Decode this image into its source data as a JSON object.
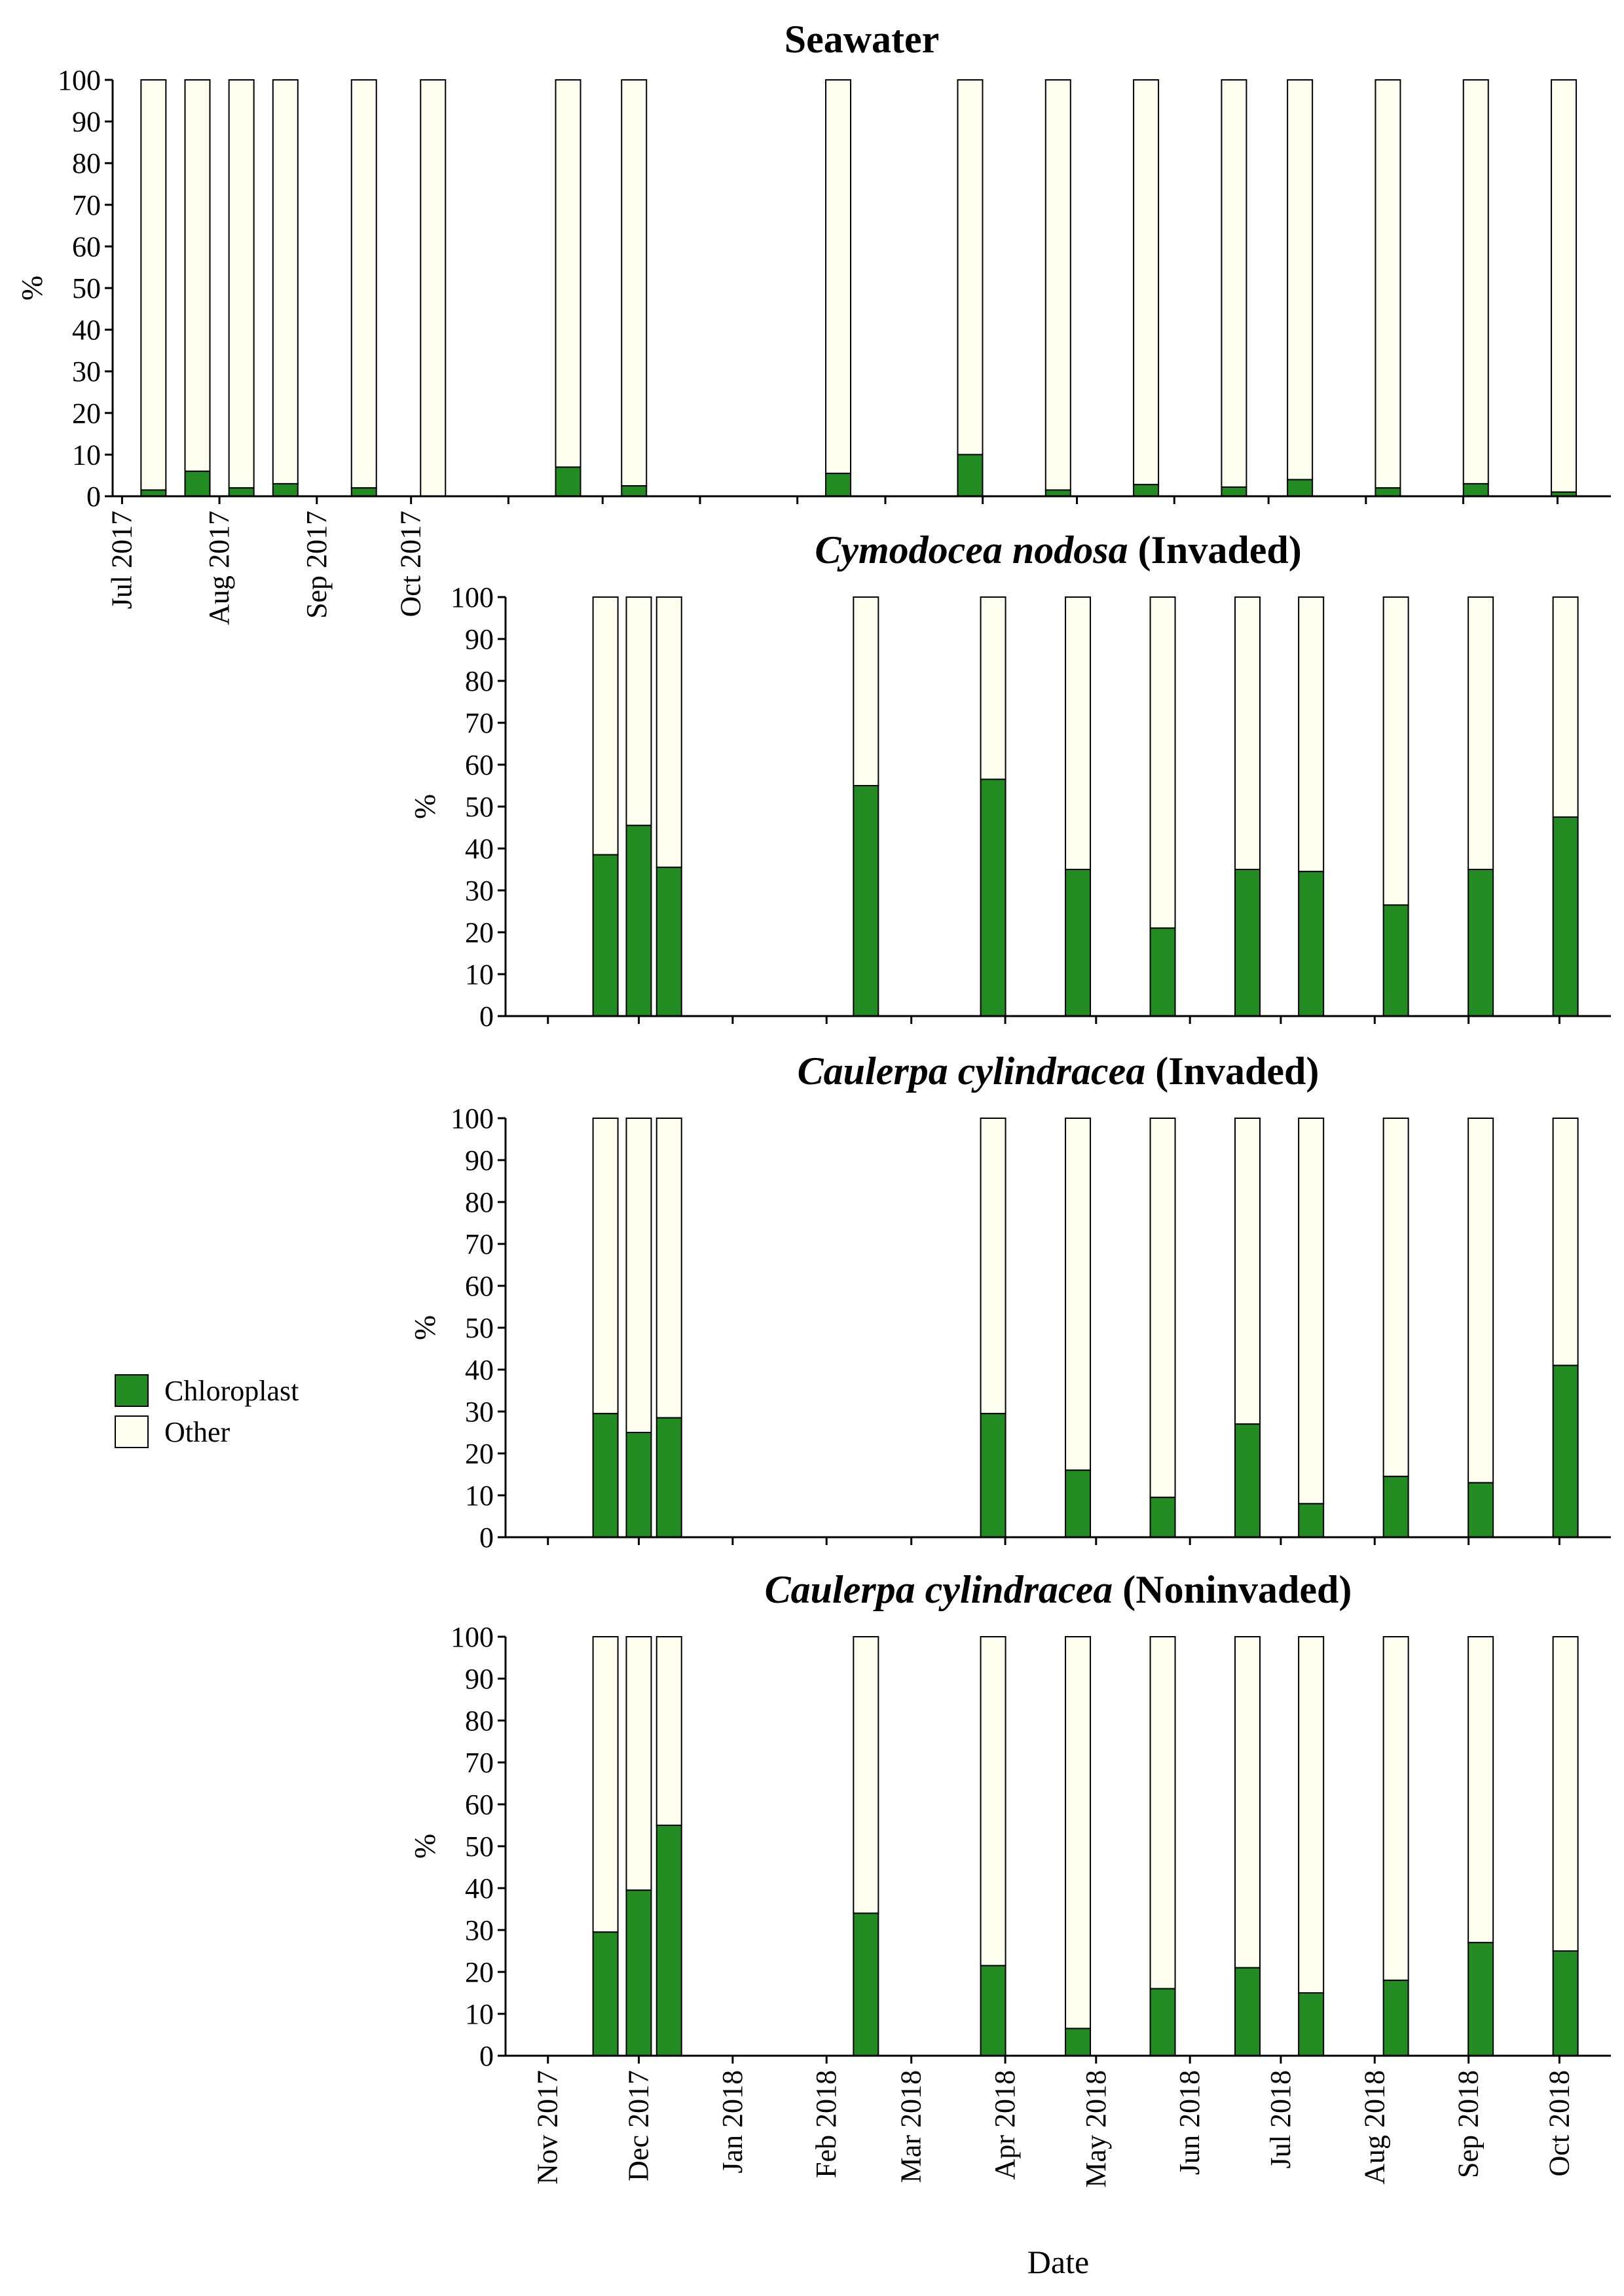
{
  "chart_data": [
    {
      "type": "bar",
      "stacked": true,
      "title": "Seawater",
      "title_italic": "",
      "title_rest": "Seawater",
      "ylabel": "%",
      "ylim": [
        0,
        100
      ],
      "yticks": [
        0,
        10,
        20,
        30,
        40,
        50,
        60,
        70,
        80,
        90,
        100
      ],
      "xlim": [
        "2017-06-28",
        "2018-10-18"
      ],
      "xticks": [
        {
          "date": "2017-07-01",
          "label": "Jul 2017"
        },
        {
          "date": "2017-08-01",
          "label": "Aug 2017"
        },
        {
          "date": "2017-09-01",
          "label": "Sep 2017"
        },
        {
          "date": "2017-10-01",
          "label": "Oct 2017"
        },
        {
          "date": "2017-11-01",
          "label": ""
        },
        {
          "date": "2017-12-01",
          "label": ""
        },
        {
          "date": "2018-01-01",
          "label": ""
        },
        {
          "date": "2018-02-01",
          "label": ""
        },
        {
          "date": "2018-03-01",
          "label": ""
        },
        {
          "date": "2018-04-01",
          "label": ""
        },
        {
          "date": "2018-05-01",
          "label": ""
        },
        {
          "date": "2018-06-01",
          "label": ""
        },
        {
          "date": "2018-07-01",
          "label": ""
        },
        {
          "date": "2018-08-01",
          "label": ""
        },
        {
          "date": "2018-09-01",
          "label": ""
        },
        {
          "date": "2018-10-01",
          "label": ""
        }
      ],
      "x": [
        "2017-07-11",
        "2017-07-25",
        "2017-08-08",
        "2017-08-22",
        "2017-09-16",
        "2017-10-08",
        "2017-11-20",
        "2017-12-11",
        "2018-02-14",
        "2018-03-28",
        "2018-04-25",
        "2018-05-23",
        "2018-06-20",
        "2018-07-11",
        "2018-08-08",
        "2018-09-05",
        "2018-10-03"
      ],
      "series": [
        {
          "name": "Chloroplast",
          "values": [
            1.5,
            6,
            2,
            3,
            2,
            0,
            7,
            2.5,
            5.5,
            10,
            1.5,
            2.8,
            2.2,
            4,
            2,
            3,
            1
          ]
        },
        {
          "name": "Other",
          "values": [
            98.5,
            94,
            98,
            97,
            98,
            100,
            93,
            97.5,
            94.5,
            90,
            98.5,
            97.2,
            97.8,
            96,
            98,
            97,
            99
          ]
        }
      ]
    },
    {
      "type": "bar",
      "stacked": true,
      "title": "Cymodocea nodosa (Invaded)",
      "title_italic": "Cymodocea nodosa",
      "title_rest": " (Invaded)",
      "ylabel": "%",
      "ylim": [
        0,
        100
      ],
      "yticks": [
        0,
        10,
        20,
        30,
        40,
        50,
        60,
        70,
        80,
        90,
        100
      ],
      "xlim": [
        "2017-10-18",
        "2018-10-18"
      ],
      "xticks": [
        {
          "date": "2017-11-01",
          "label": ""
        },
        {
          "date": "2017-12-01",
          "label": ""
        },
        {
          "date": "2018-01-01",
          "label": ""
        },
        {
          "date": "2018-02-01",
          "label": ""
        },
        {
          "date": "2018-03-01",
          "label": ""
        },
        {
          "date": "2018-04-01",
          "label": ""
        },
        {
          "date": "2018-05-01",
          "label": ""
        },
        {
          "date": "2018-06-01",
          "label": ""
        },
        {
          "date": "2018-07-01",
          "label": ""
        },
        {
          "date": "2018-08-01",
          "label": ""
        },
        {
          "date": "2018-09-01",
          "label": ""
        },
        {
          "date": "2018-10-01",
          "label": ""
        }
      ],
      "x": [
        "2017-11-20",
        "2017-12-01",
        "2017-12-11",
        "2018-02-14",
        "2018-03-28",
        "2018-04-25",
        "2018-05-23",
        "2018-06-20",
        "2018-07-11",
        "2018-08-08",
        "2018-09-05",
        "2018-10-03"
      ],
      "series": [
        {
          "name": "Chloroplast",
          "values": [
            38.5,
            45.5,
            35.5,
            55,
            56.5,
            35,
            21,
            35,
            34.5,
            26.5,
            35,
            47.5
          ]
        },
        {
          "name": "Other",
          "values": [
            61.5,
            54.5,
            64.5,
            45,
            43.5,
            65,
            79,
            65,
            65.5,
            73.5,
            65,
            52.5
          ]
        }
      ]
    },
    {
      "type": "bar",
      "stacked": true,
      "title": "Caulerpa cylindracea (Invaded)",
      "title_italic": "Caulerpa cylindracea",
      "title_rest": " (Invaded)",
      "ylabel": "%",
      "ylim": [
        0,
        100
      ],
      "yticks": [
        0,
        10,
        20,
        30,
        40,
        50,
        60,
        70,
        80,
        90,
        100
      ],
      "xlim": [
        "2017-10-18",
        "2018-10-18"
      ],
      "xticks": [
        {
          "date": "2017-11-01",
          "label": ""
        },
        {
          "date": "2017-12-01",
          "label": ""
        },
        {
          "date": "2018-01-01",
          "label": ""
        },
        {
          "date": "2018-02-01",
          "label": ""
        },
        {
          "date": "2018-03-01",
          "label": ""
        },
        {
          "date": "2018-04-01",
          "label": ""
        },
        {
          "date": "2018-05-01",
          "label": ""
        },
        {
          "date": "2018-06-01",
          "label": ""
        },
        {
          "date": "2018-07-01",
          "label": ""
        },
        {
          "date": "2018-08-01",
          "label": ""
        },
        {
          "date": "2018-09-01",
          "label": ""
        },
        {
          "date": "2018-10-01",
          "label": ""
        }
      ],
      "x": [
        "2017-11-20",
        "2017-12-01",
        "2017-12-11",
        "2018-03-28",
        "2018-04-25",
        "2018-05-23",
        "2018-06-20",
        "2018-07-11",
        "2018-08-08",
        "2018-09-05",
        "2018-10-03"
      ],
      "series": [
        {
          "name": "Chloroplast",
          "values": [
            29.5,
            25,
            28.5,
            29.5,
            16,
            9.5,
            27,
            8,
            14.5,
            13,
            41
          ]
        },
        {
          "name": "Other",
          "values": [
            70.5,
            75,
            71.5,
            70.5,
            84,
            90.5,
            73,
            92,
            85.5,
            87,
            59
          ]
        }
      ]
    },
    {
      "type": "bar",
      "stacked": true,
      "title": "Caulerpa cylindracea (Noninvaded)",
      "title_italic": "Caulerpa cylindracea",
      "title_rest": " (Noninvaded)",
      "ylabel": "%",
      "xlabel": "Date",
      "ylim": [
        0,
        100
      ],
      "yticks": [
        0,
        10,
        20,
        30,
        40,
        50,
        60,
        70,
        80,
        90,
        100
      ],
      "xlim": [
        "2017-10-18",
        "2018-10-18"
      ],
      "xticks": [
        {
          "date": "2017-11-01",
          "label": "Nov 2017"
        },
        {
          "date": "2017-12-01",
          "label": "Dec 2017"
        },
        {
          "date": "2018-01-01",
          "label": "Jan 2018"
        },
        {
          "date": "2018-02-01",
          "label": "Feb 2018"
        },
        {
          "date": "2018-03-01",
          "label": "Mar 2018"
        },
        {
          "date": "2018-04-01",
          "label": "Apr 2018"
        },
        {
          "date": "2018-05-01",
          "label": "May 2018"
        },
        {
          "date": "2018-06-01",
          "label": "Jun 2018"
        },
        {
          "date": "2018-07-01",
          "label": "Jul 2018"
        },
        {
          "date": "2018-08-01",
          "label": "Aug 2018"
        },
        {
          "date": "2018-09-01",
          "label": "Sep 2018"
        },
        {
          "date": "2018-10-01",
          "label": "Oct 2018"
        }
      ],
      "x": [
        "2017-11-20",
        "2017-12-01",
        "2017-12-11",
        "2018-02-14",
        "2018-03-28",
        "2018-04-25",
        "2018-05-23",
        "2018-06-20",
        "2018-07-11",
        "2018-08-08",
        "2018-09-05",
        "2018-10-03"
      ],
      "series": [
        {
          "name": "Chloroplast",
          "values": [
            29.5,
            39.5,
            55,
            34,
            21.5,
            6.5,
            16,
            21,
            15,
            18,
            27,
            25
          ]
        },
        {
          "name": "Other",
          "values": [
            70.5,
            60.5,
            45,
            66,
            78.5,
            93.5,
            84,
            79,
            85,
            82,
            73,
            75
          ]
        }
      ]
    }
  ],
  "legend": {
    "placement": "left",
    "items": [
      {
        "label": "Chloroplast",
        "color": "#228b22"
      },
      {
        "label": "Other",
        "color": "#fffff0"
      }
    ]
  },
  "colors": {
    "chloroplast": "#228b22",
    "other": "#fffff0",
    "outline": "#000000"
  }
}
